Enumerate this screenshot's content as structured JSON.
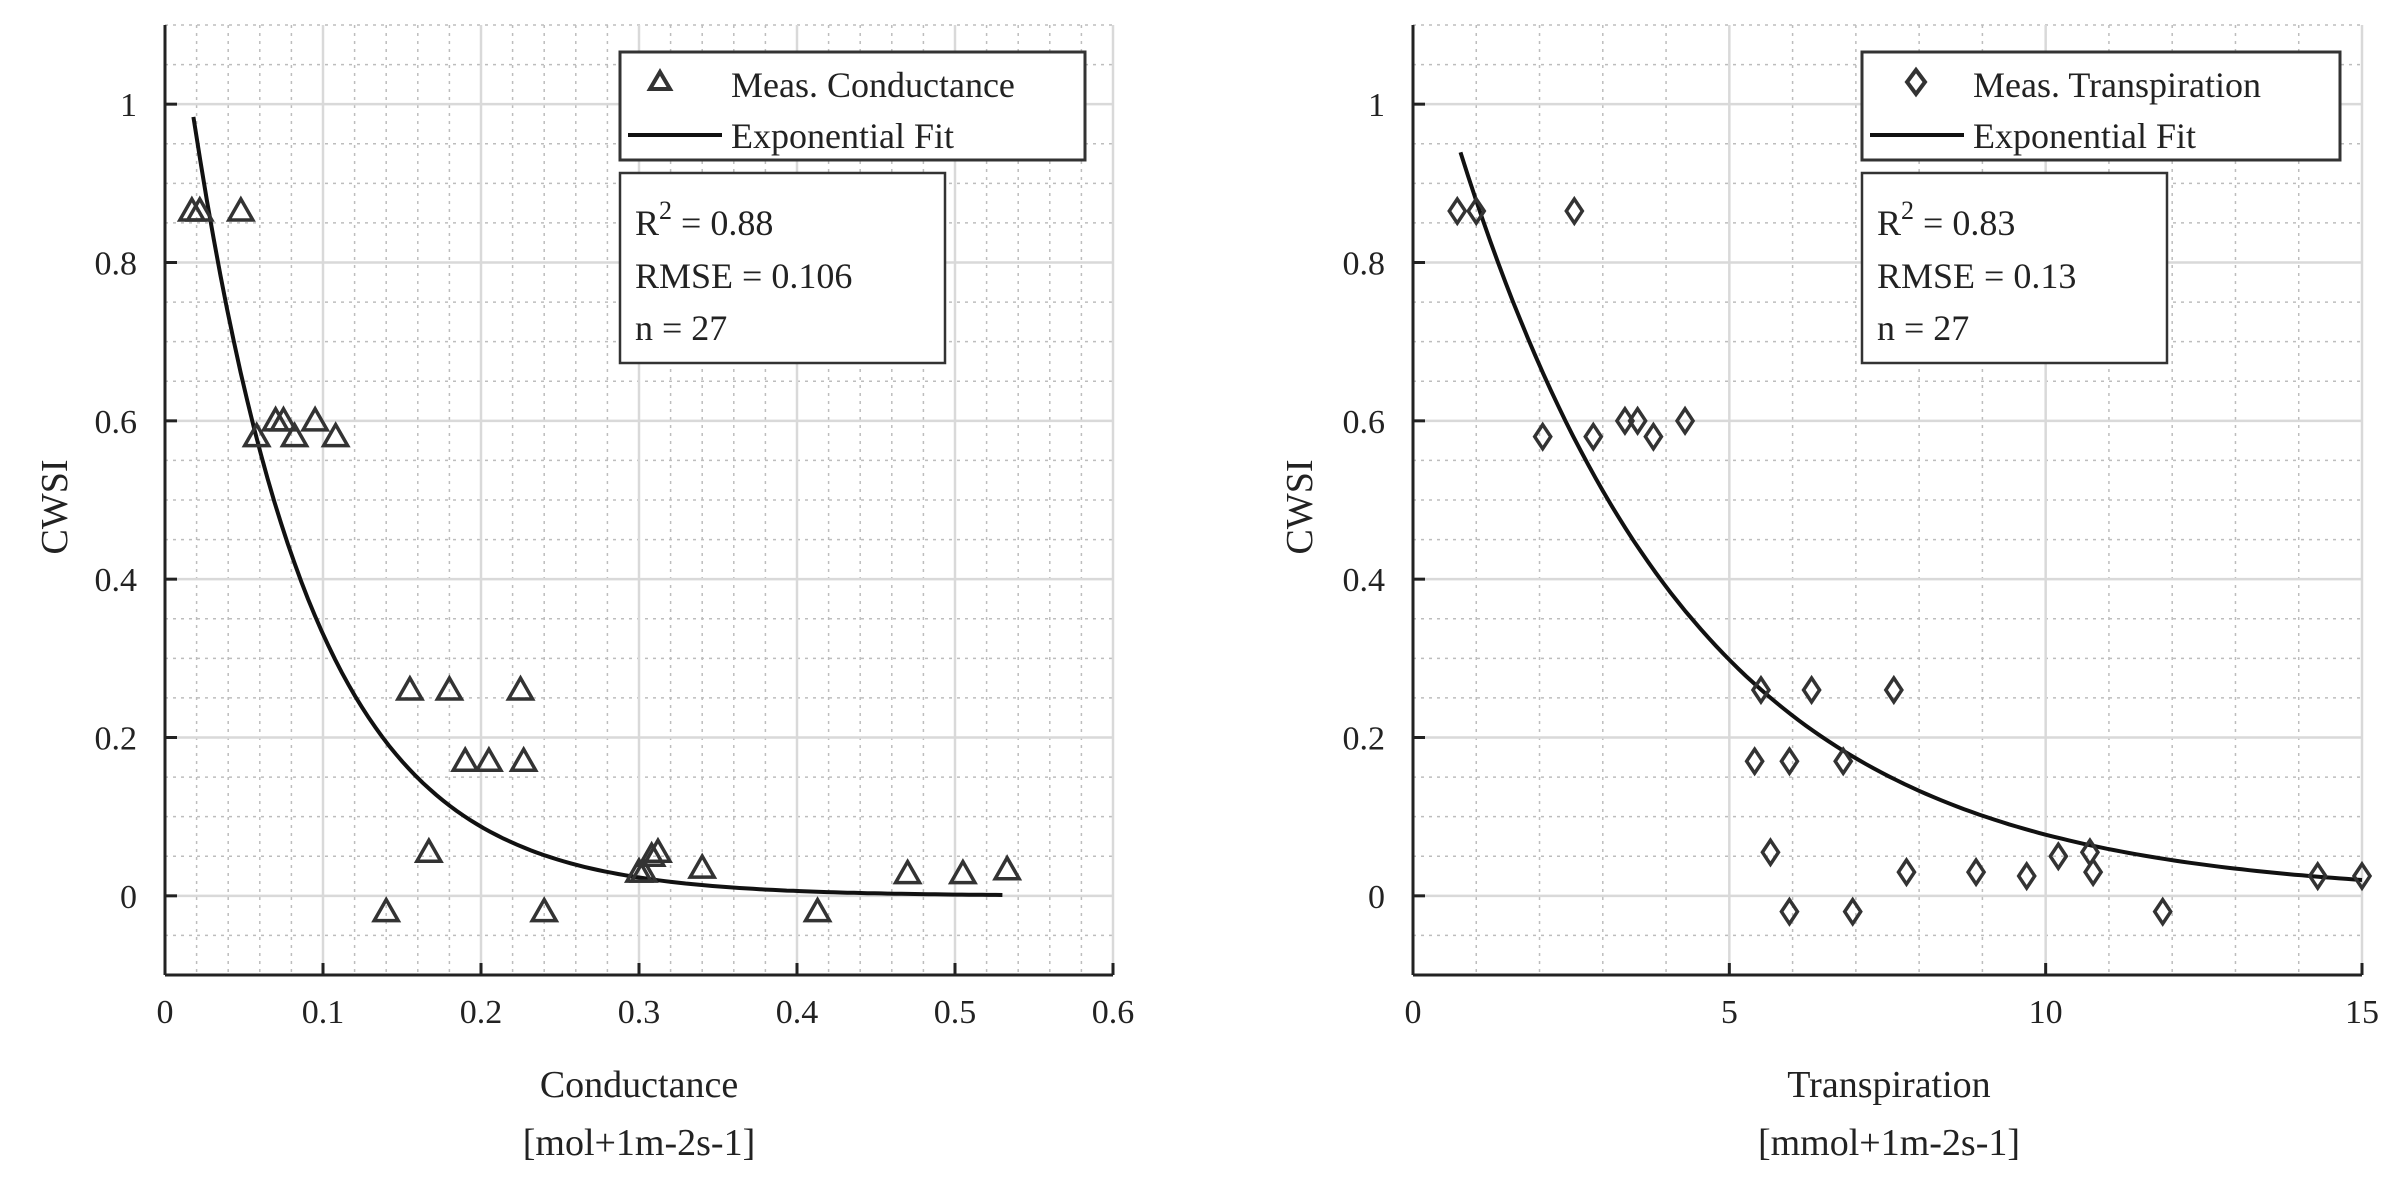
{
  "chart_data": [
    {
      "type": "scatter",
      "xlabel": "Conductance",
      "xunit": "[mol+1m-2s-1]",
      "ylabel": "CWSI",
      "xlim": [
        0,
        0.6
      ],
      "ylim": [
        -0.1,
        1.1
      ],
      "xticks": [
        0,
        0.1,
        0.2,
        0.3,
        0.4,
        0.5,
        0.6
      ],
      "xtick_labels": [
        "0",
        "0.1",
        "0.2",
        "0.3",
        "0.4",
        "0.5",
        "0.6"
      ],
      "yticks": [
        0,
        0.2,
        0.4,
        0.6,
        0.8,
        1
      ],
      "ytick_labels": [
        "0",
        "0.2",
        "0.4",
        "0.6",
        "0.8",
        "1"
      ],
      "grid": true,
      "marker": "triangle",
      "legend": [
        "Meas. Conductance",
        "Exponential Fit"
      ],
      "legend_position": "top-right",
      "stats": {
        "r2_base": "R",
        "r2_sup": "2",
        "r2_value": " = 0.88",
        "rmse": "RMSE = 0.106",
        "n": "n = 27"
      },
      "points": [
        [
          0.017,
          0.865
        ],
        [
          0.022,
          0.865
        ],
        [
          0.048,
          0.865
        ],
        [
          0.058,
          0.58
        ],
        [
          0.07,
          0.6
        ],
        [
          0.075,
          0.6
        ],
        [
          0.082,
          0.58
        ],
        [
          0.095,
          0.6
        ],
        [
          0.108,
          0.58
        ],
        [
          0.155,
          0.26
        ],
        [
          0.18,
          0.26
        ],
        [
          0.225,
          0.26
        ],
        [
          0.19,
          0.17
        ],
        [
          0.205,
          0.17
        ],
        [
          0.227,
          0.17
        ],
        [
          0.167,
          0.055
        ],
        [
          0.14,
          -0.02
        ],
        [
          0.24,
          -0.02
        ],
        [
          0.3,
          0.03
        ],
        [
          0.303,
          0.03
        ],
        [
          0.308,
          0.05
        ],
        [
          0.312,
          0.055
        ],
        [
          0.34,
          0.035
        ],
        [
          0.413,
          -0.02
        ],
        [
          0.47,
          0.028
        ],
        [
          0.505,
          0.028
        ],
        [
          0.533,
          0.033
        ]
      ],
      "fit": {
        "label": "Exponential Fit",
        "a": 1.25,
        "b": 13.3,
        "x_range": [
          0.018,
          0.53
        ]
      }
    },
    {
      "type": "scatter",
      "xlabel": "Transpiration",
      "xunit": "[mmol+1m-2s-1]",
      "ylabel": "CWSI",
      "xlim": [
        0,
        15
      ],
      "ylim": [
        -0.1,
        1.1
      ],
      "xticks": [
        0,
        5,
        10,
        15
      ],
      "xtick_labels": [
        "0",
        "5",
        "10",
        "15"
      ],
      "yticks": [
        0,
        0.2,
        0.4,
        0.6,
        0.8,
        1
      ],
      "ytick_labels": [
        "0",
        "0.2",
        "0.4",
        "0.6",
        "0.8",
        "1"
      ],
      "grid": true,
      "marker": "diamond",
      "legend": [
        "Meas. Transpiration",
        "Exponential Fit"
      ],
      "legend_position": "top-right",
      "stats": {
        "r2_base": "R",
        "r2_sup": "2",
        "r2_value": " = 0.83",
        "rmse": "RMSE = 0.13",
        "n": "n = 27"
      },
      "points": [
        [
          0.7,
          0.865
        ],
        [
          1.0,
          0.865
        ],
        [
          2.55,
          0.865
        ],
        [
          2.05,
          0.58
        ],
        [
          2.85,
          0.58
        ],
        [
          3.35,
          0.6
        ],
        [
          3.55,
          0.6
        ],
        [
          3.8,
          0.58
        ],
        [
          4.3,
          0.6
        ],
        [
          5.5,
          0.26
        ],
        [
          6.3,
          0.26
        ],
        [
          7.6,
          0.26
        ],
        [
          5.4,
          0.17
        ],
        [
          5.95,
          0.17
        ],
        [
          6.8,
          0.17
        ],
        [
          5.65,
          0.055
        ],
        [
          5.95,
          -0.02
        ],
        [
          6.95,
          -0.02
        ],
        [
          7.8,
          0.03
        ],
        [
          8.9,
          0.03
        ],
        [
          9.7,
          0.025
        ],
        [
          10.2,
          0.05
        ],
        [
          10.7,
          0.055
        ],
        [
          10.75,
          0.03
        ],
        [
          11.85,
          -0.02
        ],
        [
          14.3,
          0.025
        ],
        [
          15.0,
          0.025
        ]
      ],
      "fit": {
        "label": "Exponential Fit",
        "a": 1.15,
        "b": 0.27,
        "x_range": [
          0.75,
          15
        ]
      }
    }
  ]
}
